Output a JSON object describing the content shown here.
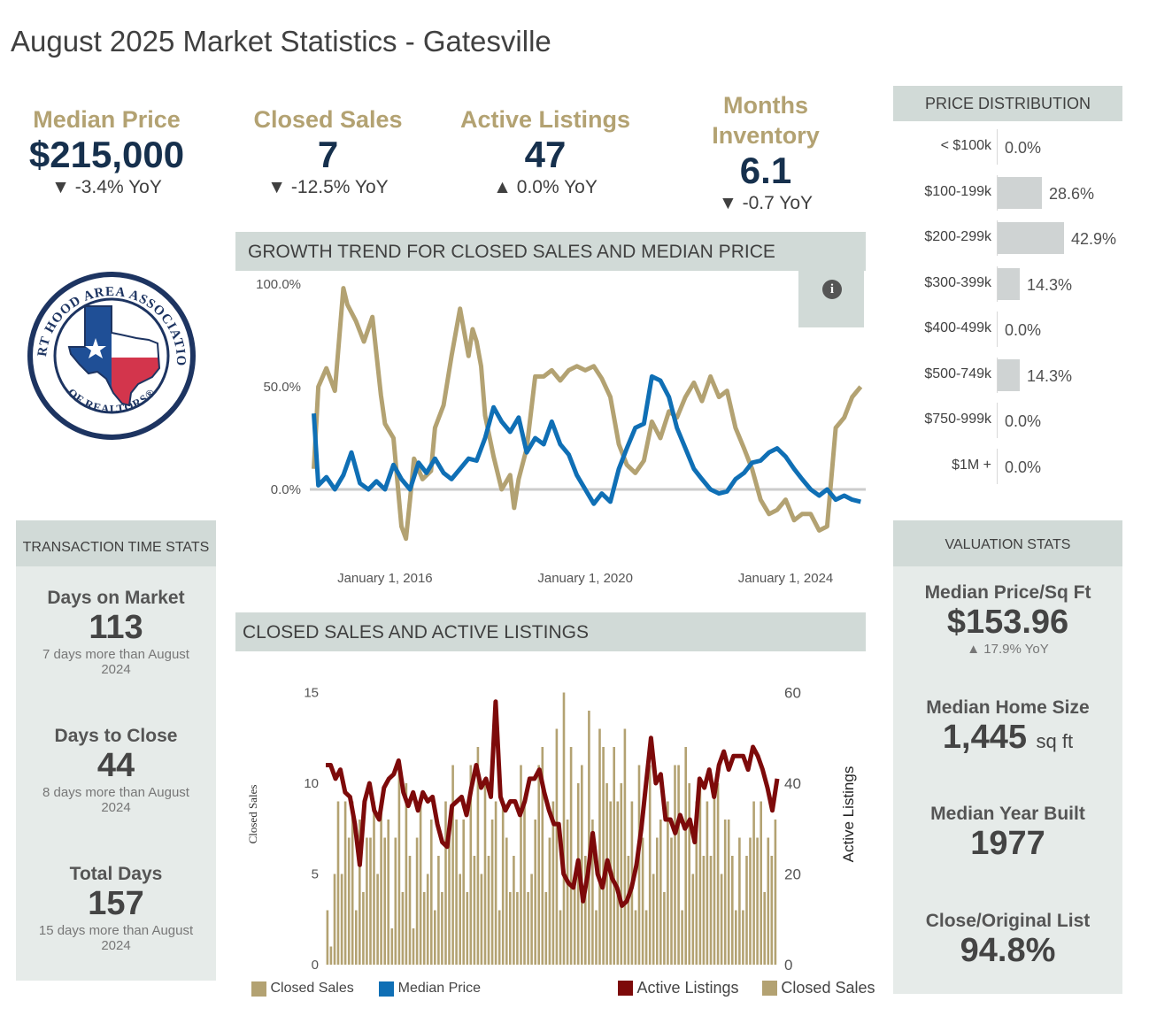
{
  "title": "August 2025 Market Statistics - Gatesville",
  "kpis": {
    "median_price": {
      "label": "Median Price",
      "value": "$215,000",
      "yoy": "▼ -3.4% YoY"
    },
    "closed_sales": {
      "label": "Closed Sales",
      "value": "7",
      "yoy": "▼ -12.5% YoY"
    },
    "active_listings": {
      "label": "Active Listings",
      "value": "47",
      "yoy": "▲ 0.0% YoY"
    },
    "months_inventory": {
      "label_line1": "Months",
      "label_line2": "Inventory",
      "value": "6.1",
      "yoy": "▼ -0.7 YoY"
    }
  },
  "logo": {
    "text_top": "FORT HOOD AREA ASSOCIATION",
    "text_bottom": "OF REALTORS®"
  },
  "price_distribution": {
    "header": "PRICE DISTRIBUTION",
    "rows": [
      {
        "label": "< $100k",
        "value": "0.0%",
        "pct": 0.0
      },
      {
        "label": "$100-199k",
        "value": "28.6%",
        "pct": 28.6
      },
      {
        "label": "$200-299k",
        "value": "42.9%",
        "pct": 42.9
      },
      {
        "label": "$300-399k",
        "value": "14.3%",
        "pct": 14.3
      },
      {
        "label": "$400-499k",
        "value": "0.0%",
        "pct": 0.0
      },
      {
        "label": "$500-749k",
        "value": "14.3%",
        "pct": 14.3
      },
      {
        "label": "$750-999k",
        "value": "0.0%",
        "pct": 0.0
      },
      {
        "label": "$1M +",
        "value": "0.0%",
        "pct": 0.0
      }
    ]
  },
  "transaction": {
    "header": "TRANSACTION TIME STATS",
    "items": [
      {
        "label": "Days on Market",
        "value": "113",
        "note": "7 days more than August 2024"
      },
      {
        "label": "Days to Close",
        "value": "44",
        "note": "8 days more than August 2024"
      },
      {
        "label": "Total Days",
        "value": "157",
        "note": "15 days more than August 2024"
      }
    ]
  },
  "valuation": {
    "header": "VALUATION STATS",
    "price_sqft_label": "Median Price/Sq Ft",
    "price_sqft_value": "$153.96",
    "price_sqft_yoy": "▲ 17.9% YoY",
    "home_size_label": "Median Home Size",
    "home_size_value": "1,445",
    "home_size_unit": "sq ft",
    "year_built_label": "Median Year Built",
    "year_built_value": "1977",
    "close_list_label": "Close/Original List",
    "close_list_value": "94.8%"
  },
  "growth_header": "GROWTH TREND FOR CLOSED SALES AND MEDIAN PRICE",
  "sales_header": "CLOSED SALES AND ACTIVE LISTINGS",
  "info_icon": "info-icon",
  "colors": {
    "tan": "#b3a272",
    "blue": "#0f6fb5",
    "darkred": "#7d0a0a",
    "zero_line": "#cccccc"
  },
  "chart_data": [
    {
      "type": "line",
      "y_ticks": [
        "100.0%",
        "50.0%",
        "0.0%"
      ],
      "ylim": [
        -0.25,
        1.0
      ],
      "x_ticks": [
        "January 1, 2016",
        "January 1, 2020",
        "January 1, 2024"
      ],
      "x_tick_positions": [
        2016,
        2020,
        2024
      ],
      "xlim": [
        2014.5,
        2025.6
      ],
      "legend": [
        "Closed Sales",
        "Median Price"
      ],
      "series": [
        {
          "name": "Closed Sales",
          "color": "#b3a272",
          "x": [
            2014.58,
            2014.67,
            2014.83,
            2015.0,
            2015.17,
            2015.25,
            2015.42,
            2015.58,
            2015.75,
            2015.92,
            2016.0,
            2016.17,
            2016.33,
            2016.42,
            2016.5,
            2016.58,
            2016.75,
            2016.92,
            2017.0,
            2017.17,
            2017.33,
            2017.5,
            2017.67,
            2017.75,
            2017.83,
            2017.92,
            2018.0,
            2018.17,
            2018.33,
            2018.5,
            2018.58,
            2018.67,
            2018.83,
            2019.0,
            2019.17,
            2019.33,
            2019.5,
            2019.67,
            2019.83,
            2020.0,
            2020.17,
            2020.33,
            2020.5,
            2020.67,
            2020.83,
            2021.0,
            2021.17,
            2021.33,
            2021.5,
            2021.67,
            2021.83,
            2022.0,
            2022.17,
            2022.33,
            2022.5,
            2022.67,
            2022.83,
            2023.0,
            2023.17,
            2023.33,
            2023.5,
            2023.67,
            2023.83,
            2024.0,
            2024.17,
            2024.33,
            2024.5,
            2024.67,
            2024.83,
            2025.0,
            2025.17,
            2025.33,
            2025.5
          ],
          "y": [
            0.1,
            0.5,
            0.59,
            0.48,
            0.98,
            0.9,
            0.82,
            0.72,
            0.84,
            0.46,
            0.32,
            0.25,
            -0.18,
            -0.24,
            -0.05,
            0.15,
            0.05,
            0.09,
            0.3,
            0.41,
            0.65,
            0.88,
            0.65,
            0.78,
            0.72,
            0.6,
            0.36,
            0.16,
            0.0,
            0.07,
            -0.09,
            0.05,
            0.2,
            0.55,
            0.55,
            0.58,
            0.53,
            0.58,
            0.6,
            0.58,
            0.6,
            0.54,
            0.45,
            0.22,
            0.12,
            0.08,
            0.14,
            0.33,
            0.25,
            0.38,
            0.35,
            0.45,
            0.52,
            0.43,
            0.55,
            0.45,
            0.48,
            0.3,
            0.2,
            0.1,
            -0.05,
            -0.12,
            -0.1,
            -0.05,
            -0.15,
            -0.12,
            -0.12,
            -0.2,
            -0.18,
            0.3,
            0.35,
            0.45,
            0.5
          ]
        },
        {
          "name": "Median Price",
          "color": "#0f6fb5",
          "x": [
            2014.58,
            2014.67,
            2014.83,
            2015.0,
            2015.17,
            2015.33,
            2015.5,
            2015.67,
            2015.83,
            2016.0,
            2016.17,
            2016.33,
            2016.5,
            2016.67,
            2016.83,
            2017.0,
            2017.17,
            2017.33,
            2017.5,
            2017.67,
            2017.83,
            2018.0,
            2018.17,
            2018.33,
            2018.5,
            2018.67,
            2018.83,
            2019.0,
            2019.17,
            2019.33,
            2019.5,
            2019.67,
            2019.83,
            2020.0,
            2020.17,
            2020.33,
            2020.5,
            2020.67,
            2020.83,
            2021.0,
            2021.17,
            2021.33,
            2021.5,
            2021.67,
            2021.83,
            2022.0,
            2022.17,
            2022.33,
            2022.5,
            2022.67,
            2022.83,
            2023.0,
            2023.17,
            2023.33,
            2023.5,
            2023.67,
            2023.83,
            2024.0,
            2024.17,
            2024.33,
            2024.5,
            2024.67,
            2024.83,
            2025.0,
            2025.17,
            2025.33,
            2025.5
          ],
          "y": [
            0.37,
            0.02,
            0.06,
            0.0,
            0.07,
            0.18,
            0.03,
            0.0,
            0.04,
            0.0,
            0.12,
            0.05,
            0.0,
            0.13,
            0.08,
            0.15,
            0.08,
            0.05,
            0.1,
            0.15,
            0.14,
            0.25,
            0.4,
            0.33,
            0.28,
            0.35,
            0.18,
            0.25,
            0.22,
            0.33,
            0.22,
            0.17,
            0.07,
            0.0,
            -0.07,
            -0.02,
            -0.06,
            0.1,
            0.2,
            0.3,
            0.32,
            0.55,
            0.53,
            0.45,
            0.3,
            0.2,
            0.1,
            0.05,
            0.0,
            -0.02,
            -0.01,
            0.05,
            0.08,
            0.13,
            0.14,
            0.18,
            0.2,
            0.16,
            0.1,
            0.05,
            0.0,
            -0.03,
            0.0,
            -0.05,
            -0.03,
            -0.05,
            -0.06
          ]
        }
      ]
    },
    {
      "type": "bar",
      "left_axis": {
        "label": "Closed Sales",
        "ticks": [
          0,
          5,
          10,
          15
        ],
        "ylim": [
          0,
          16
        ]
      },
      "right_axis": {
        "label": "Active Listings",
        "ticks": [
          0,
          20,
          40,
          60
        ],
        "ylim": [
          0,
          64
        ]
      },
      "legend": [
        "Active Listings",
        "Closed Sales"
      ],
      "series": [
        {
          "name": "Closed Sales",
          "type": "bar",
          "color": "#b3a272",
          "values": [
            3,
            1,
            5,
            9,
            5,
            9,
            7,
            9,
            3,
            8,
            4,
            7,
            7,
            9,
            5,
            9,
            7,
            8,
            2,
            7,
            11,
            4,
            10,
            6,
            2,
            7,
            9,
            4,
            5,
            8,
            3,
            6,
            4,
            9,
            7,
            11,
            8,
            5,
            8,
            4,
            11,
            6,
            12,
            5,
            10,
            6,
            8,
            9,
            3,
            9,
            7,
            4,
            6,
            4,
            11,
            9,
            4,
            5,
            8,
            11,
            12,
            4,
            7,
            9,
            13,
            3,
            15,
            8,
            12,
            5,
            10,
            11,
            6,
            14,
            8,
            3,
            13,
            12,
            10,
            9,
            12,
            9,
            10,
            13,
            6,
            9,
            3,
            11,
            7,
            3,
            11,
            5,
            7,
            8,
            4,
            9,
            7,
            11,
            11,
            3,
            12,
            10,
            5,
            9,
            10,
            6,
            9,
            6,
            10,
            10,
            5,
            8,
            8,
            6,
            3,
            7,
            3,
            6,
            7,
            9,
            7,
            9,
            4,
            7,
            6,
            8
          ]
        },
        {
          "name": "Active Listings",
          "type": "line",
          "color": "#7d0a0a",
          "values": [
            44,
            44,
            41,
            43,
            38,
            37,
            31,
            22,
            36,
            40,
            34,
            32,
            39,
            41,
            42,
            45,
            38,
            35,
            38,
            34,
            38,
            36,
            37,
            31,
            27,
            26,
            35,
            36,
            37,
            33,
            39,
            44,
            39,
            41,
            37,
            58,
            37,
            34,
            36,
            36,
            33,
            36,
            41,
            41,
            43,
            38,
            34,
            31,
            31,
            20,
            18,
            17,
            23,
            14,
            20,
            29,
            20,
            17,
            23,
            19,
            17,
            13,
            14,
            17,
            22,
            30,
            40,
            50,
            40,
            42,
            32,
            32,
            29,
            33,
            30,
            32,
            27,
            41,
            39,
            43,
            37,
            44,
            47,
            43,
            46,
            46,
            46,
            43,
            48,
            46,
            43,
            39,
            34,
            41
          ]
        }
      ]
    }
  ],
  "legend1": [
    {
      "label": "Closed Sales",
      "color": "#b3a272"
    },
    {
      "label": "Median Price",
      "color": "#0f6fb5"
    }
  ],
  "legend2": [
    {
      "label": "Active Listings",
      "color": "#7d0a0a"
    },
    {
      "label": "Closed Sales",
      "color": "#b3a272"
    }
  ]
}
